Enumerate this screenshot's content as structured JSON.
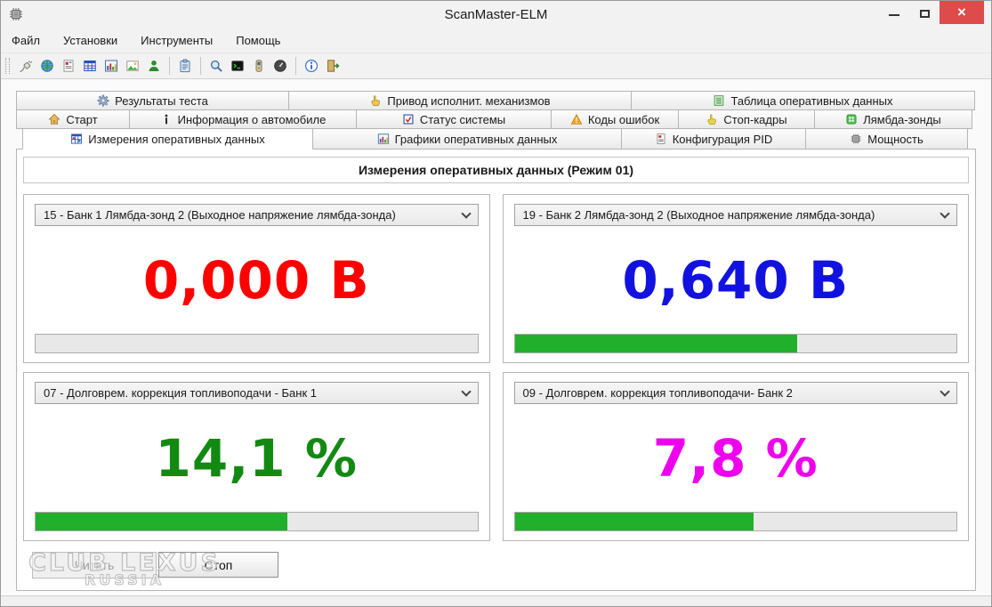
{
  "window": {
    "title": "ScanMaster-ELM"
  },
  "menu": {
    "items": [
      "Файл",
      "Установки",
      "Инструменты",
      "Помощь"
    ]
  },
  "toolbar": {
    "icons": [
      "connect-icon",
      "globe-icon",
      "report-icon",
      "table-icon",
      "chart-icon",
      "image-icon",
      "user-icon",
      "clipboard-icon",
      "search-icon",
      "terminal-icon",
      "battery-icon",
      "gauge-icon",
      "info-icon",
      "exit-icon"
    ]
  },
  "tabs": {
    "row1": [
      {
        "icon": "gear-icon",
        "label": "Результаты теста"
      },
      {
        "icon": "hand-icon",
        "label": "Привод исполнит. механизмов"
      },
      {
        "icon": "list-icon",
        "label": "Таблица оперативных данных"
      }
    ],
    "row2": [
      {
        "icon": "home-icon",
        "label": "Старт"
      },
      {
        "icon": "info-i-icon",
        "label": "Информация о автомобиле"
      },
      {
        "icon": "checkbox-icon",
        "label": "Статус системы"
      },
      {
        "icon": "warning-icon",
        "label": "Коды ошибок"
      },
      {
        "icon": "freeze-frame-icon",
        "label": "Стоп-кадры"
      },
      {
        "icon": "lambda-grid-icon",
        "label": "Лямбда-зонды"
      }
    ],
    "row3": [
      {
        "icon": "grid-icon",
        "label": "Измерения оперативных данных",
        "active": true
      },
      {
        "icon": "graph-icon",
        "label": "Графики оперативных данных"
      },
      {
        "icon": "document-icon",
        "label": "Конфигурация PID"
      },
      {
        "icon": "chip-icon",
        "label": "Мощность"
      }
    ]
  },
  "content": {
    "header": "Измерения оперативных данных (Режим 01)",
    "panels": [
      {
        "pid": "15 - Банк 1 Лямбда-зонд 2 (Выходное напряжение лямбда-зонда)",
        "value": "0,000 В",
        "color": "#ff0000",
        "progress": 0
      },
      {
        "pid": "19 - Банк 2 Лямбда-зонд 2 (Выходное напряжение лямбда-зонда)",
        "value": "0,640 В",
        "color": "#1212e0",
        "progress": 64
      },
      {
        "pid": "07 - Долговрем. коррекция топливоподачи - Банк 1",
        "value": "14,1 %",
        "color": "#128a12",
        "progress": 57
      },
      {
        "pid": "09 - Долговрем. коррекция топливоподачи- Банк 2",
        "value": "7,8 %",
        "color": "#ee00ee",
        "progress": 54
      }
    ],
    "buttons": {
      "read": "Читать",
      "stop": "Стоп"
    }
  },
  "watermark": {
    "line1": "CLUB LEXUS",
    "line2": "RUSSIA"
  },
  "colors": {
    "close_button": "#dd4b4b",
    "progress_fill": "#22b02c"
  }
}
